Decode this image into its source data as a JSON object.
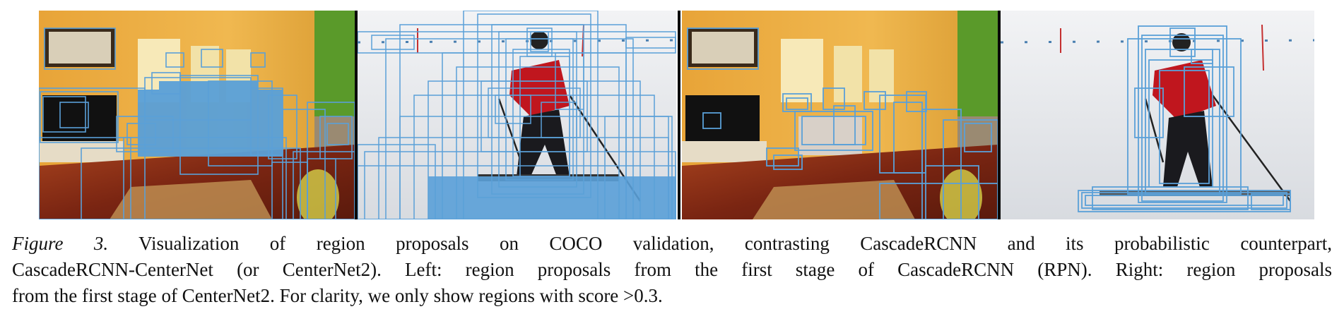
{
  "figure": {
    "label": "Figure 3.",
    "caption_line1": "Visualization of region proposals on COCO validation, contrasting CascadeRCNN and its probabilistic counterpart,",
    "caption_line2": "CascadeRCNN-CenterNet (or CenterNet2). Left: region proposals from the first stage of CascadeRCNN (RPN). Right: region proposals",
    "caption_line3": "from the first stage of CenterNet2. For clarity, we only show regions with score >0.3."
  },
  "colors": {
    "box": "#5aa0d8",
    "wall": "#e2a23a",
    "green_wall": "#5a9a2a",
    "floor": "#7a2a16",
    "snow": "#eef0f2",
    "jacket": "#c0161e",
    "pants": "#1a1a1e"
  }
}
